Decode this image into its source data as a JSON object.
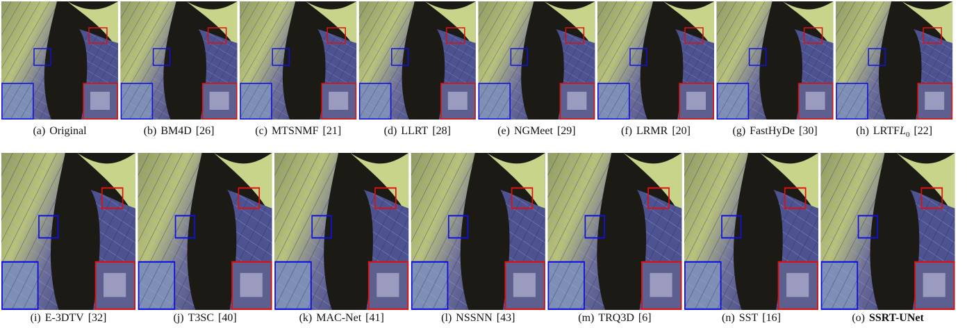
{
  "figure": {
    "captions": [
      {
        "label": "(a)",
        "name": "Original"
      },
      {
        "label": "(b)",
        "name": "BM4D",
        "ref": "[26]"
      },
      {
        "label": "(c)",
        "name": "MTSNMF",
        "ref": "[21]"
      },
      {
        "label": "(d)",
        "name": "LLRT",
        "ref": "[28]"
      },
      {
        "label": "(e)",
        "name": "NGMeet",
        "ref": "[29]"
      },
      {
        "label": "(f)",
        "name": "LRMR",
        "ref": "[20]"
      },
      {
        "label": "(g)",
        "name": "FastHyDe",
        "ref": "[30]"
      },
      {
        "label": "(h)",
        "name": "LRTF",
        "math": "L",
        "sub": "0",
        "ref": "[22]"
      },
      {
        "label": "(i)",
        "name": "E-3DTV",
        "ref": "[32]"
      },
      {
        "label": "(j)",
        "name": "T3SC",
        "ref": "[40]"
      },
      {
        "label": "(k)",
        "name": "MAC-Net",
        "ref": "[41]"
      },
      {
        "label": "(l)",
        "name": "NSSNN",
        "ref": "[43]"
      },
      {
        "label": "(m)",
        "name": "TRQ3D",
        "ref": "[6]"
      },
      {
        "label": "(n)",
        "name": "SST",
        "ref": "[16]"
      },
      {
        "label": "(o)",
        "name": "SSRT-UNet",
        "bold": true
      }
    ]
  }
}
